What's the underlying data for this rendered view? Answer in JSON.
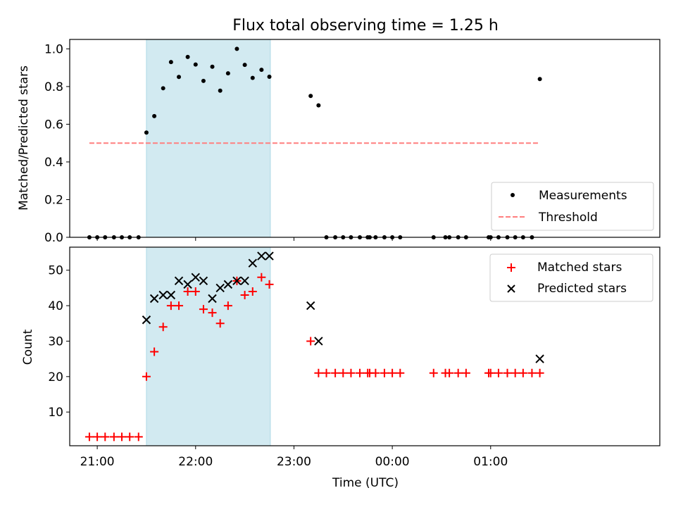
{
  "chart_data": {
    "title": "Flux total observing time = 1.25 h",
    "xlabel": "Time (UTC)",
    "x_ticks": [
      "21:00",
      "22:00",
      "23:00",
      "00:00",
      "01:00"
    ],
    "x_tick_hours": [
      21,
      22,
      23,
      24,
      25
    ],
    "xlim_hours": [
      20.72,
      26.72
    ],
    "highlight_span_hours": [
      21.5,
      22.76
    ],
    "colors": {
      "highlight": "#add8e6",
      "measurements": "#000000",
      "threshold": "#ff7f7f",
      "matched": "#ff0000",
      "predicted": "#000000"
    },
    "panels": [
      {
        "type": "scatter",
        "ylabel": "Matched/Predicted stars",
        "ylim": [
          0,
          1.05
        ],
        "y_ticks": [
          "0.0",
          "0.2",
          "0.4",
          "0.6",
          "0.8",
          "1.0"
        ],
        "y_tick_values": [
          0,
          0.2,
          0.4,
          0.6,
          0.8,
          1.0
        ],
        "legend_position": "lower-right",
        "series": [
          {
            "name": "Measurements",
            "marker": "dot",
            "x": [
              20.92,
              21.0,
              21.08,
              21.17,
              21.25,
              21.33,
              21.42,
              21.5,
              21.58,
              21.67,
              21.75,
              21.83,
              21.92,
              22.0,
              22.08,
              22.17,
              22.25,
              22.33,
              22.42,
              22.5,
              22.58,
              22.67,
              22.75,
              23.17,
              23.25,
              23.33,
              23.42,
              23.5,
              23.58,
              23.67,
              23.75,
              23.77,
              23.83,
              23.92,
              24.0,
              24.08,
              24.42,
              24.54,
              24.58,
              24.67,
              24.75,
              24.98,
              25.0,
              25.08,
              25.17,
              25.25,
              25.33,
              25.42,
              25.5
            ],
            "y": [
              0,
              0,
              0,
              0,
              0,
              0,
              0,
              0.556,
              0.643,
              0.791,
              0.93,
              0.851,
              0.957,
              0.917,
              0.83,
              0.905,
              0.778,
              0.87,
              1.0,
              0.915,
              0.846,
              0.889,
              0.852,
              0.75,
              0.7,
              0,
              0,
              0,
              0,
              0,
              0,
              0,
              0,
              0,
              0,
              0,
              0,
              0,
              0,
              0,
              0,
              0,
              0,
              0,
              0,
              0,
              0,
              0,
              0.84
            ]
          },
          {
            "name": "Threshold",
            "style": "dashed",
            "x": [
              20.92,
              25.5
            ],
            "y": [
              0.5,
              0.5
            ]
          }
        ]
      },
      {
        "type": "scatter",
        "ylabel": "Count",
        "ylim": [
          0.5,
          56.5
        ],
        "y_ticks": [
          "10",
          "20",
          "30",
          "40",
          "50"
        ],
        "y_tick_values": [
          10,
          20,
          30,
          40,
          50
        ],
        "legend_position": "upper-right",
        "series": [
          {
            "name": "Matched stars",
            "marker": "plus",
            "x": [
              20.92,
              21.0,
              21.08,
              21.17,
              21.25,
              21.33,
              21.42,
              21.5,
              21.58,
              21.67,
              21.75,
              21.83,
              21.92,
              22.0,
              22.08,
              22.17,
              22.25,
              22.33,
              22.42,
              22.5,
              22.58,
              22.67,
              22.75,
              23.17,
              23.25,
              23.33,
              23.42,
              23.5,
              23.58,
              23.67,
              23.75,
              23.77,
              23.83,
              23.92,
              24.0,
              24.08,
              24.42,
              24.54,
              24.58,
              24.67,
              24.75,
              24.98,
              25.0,
              25.08,
              25.17,
              25.25,
              25.33,
              25.42,
              25.5
            ],
            "y": [
              3,
              3,
              3,
              3,
              3,
              3,
              3,
              20,
              27,
              34,
              40,
              40,
              44,
              44,
              39,
              38,
              35,
              40,
              47,
              43,
              44,
              48,
              46,
              30,
              21,
              21,
              21,
              21,
              21,
              21,
              21,
              21,
              21,
              21,
              21,
              21,
              21,
              21,
              21,
              21,
              21,
              21,
              21,
              21,
              21,
              21,
              21,
              21,
              21
            ]
          },
          {
            "name": "Predicted stars",
            "marker": "x",
            "x": [
              21.5,
              21.58,
              21.67,
              21.75,
              21.83,
              21.92,
              22.0,
              22.08,
              22.17,
              22.25,
              22.33,
              22.42,
              22.5,
              22.58,
              22.67,
              22.75,
              23.17,
              23.25,
              25.5
            ],
            "y": [
              36,
              42,
              43,
              43,
              47,
              46,
              48,
              47,
              42,
              45,
              46,
              47,
              47,
              52,
              54,
              54,
              40,
              30,
              25
            ]
          }
        ]
      }
    ]
  }
}
